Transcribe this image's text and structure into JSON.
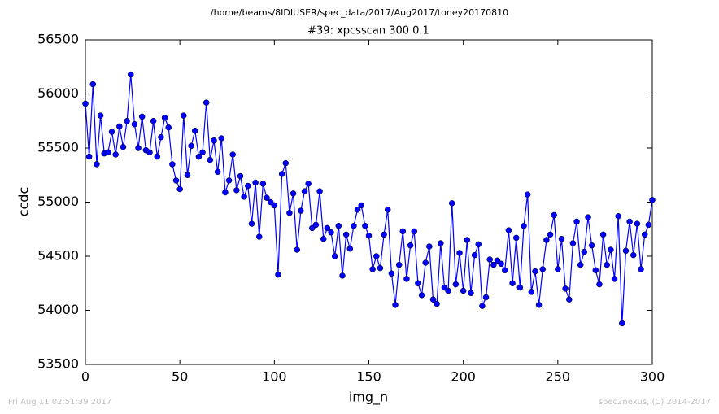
{
  "chart_data": {
    "type": "line",
    "suptitle": "/home/beams/8IDIUSER/spec_data/2017/Aug2017/toney20170810",
    "title": "#39: xpcsscan 300 0.1",
    "xlabel": "img_n",
    "ylabel": "ccdc",
    "footer_left": "Fri Aug 11 02:51:39 2017",
    "footer_right": "spec2nexus, (C) 2014-2017",
    "xlim": [
      0,
      300
    ],
    "ylim": [
      53500,
      56500
    ],
    "xticks": [
      0,
      50,
      100,
      150,
      200,
      250,
      300
    ],
    "yticks": [
      53500,
      54000,
      54500,
      55000,
      55500,
      56000,
      56500
    ],
    "grid": false,
    "x": [
      0,
      2,
      4,
      6,
      8,
      10,
      12,
      14,
      16,
      18,
      20,
      22,
      24,
      26,
      28,
      30,
      32,
      34,
      36,
      38,
      40,
      42,
      44,
      46,
      48,
      50,
      52,
      54,
      56,
      58,
      60,
      62,
      64,
      66,
      68,
      70,
      72,
      74,
      76,
      78,
      80,
      82,
      84,
      86,
      88,
      90,
      92,
      94,
      96,
      98,
      100,
      102,
      104,
      106,
      108,
      110,
      112,
      114,
      116,
      118,
      120,
      122,
      124,
      126,
      128,
      130,
      132,
      134,
      136,
      138,
      140,
      142,
      144,
      146,
      148,
      150,
      152,
      154,
      156,
      158,
      160,
      162,
      164,
      166,
      168,
      170,
      172,
      174,
      176,
      178,
      180,
      182,
      184,
      186,
      188,
      190,
      192,
      194,
      196,
      198,
      200,
      202,
      204,
      206,
      208,
      210,
      212,
      214,
      216,
      218,
      220,
      222,
      224,
      226,
      228,
      230,
      232,
      234,
      236,
      238,
      240,
      242,
      244,
      246,
      248,
      250,
      252,
      254,
      256,
      258,
      260,
      262,
      264,
      266,
      268,
      270,
      272,
      274,
      276,
      278,
      280,
      282,
      284,
      286,
      288,
      290,
      292,
      294,
      296,
      298,
      300
    ],
    "series": [
      {
        "name": "ccdc",
        "color": "#0000ff",
        "values": [
          55910,
          55420,
          56090,
          55350,
          55800,
          55450,
          55460,
          55650,
          55440,
          55700,
          55510,
          55750,
          56180,
          55720,
          55500,
          55790,
          55480,
          55460,
          55750,
          55420,
          55600,
          55780,
          55690,
          55350,
          55200,
          55120,
          55800,
          55250,
          55520,
          55660,
          55420,
          55460,
          55920,
          55390,
          55570,
          55280,
          55590,
          55090,
          55200,
          55440,
          55110,
          55240,
          55050,
          55150,
          54800,
          55180,
          54680,
          55170,
          55040,
          55000,
          54970,
          54330,
          55260,
          55360,
          54900,
          55080,
          54560,
          54920,
          55100,
          55170,
          54760,
          54790,
          55100,
          54660,
          54760,
          54720,
          54500,
          54780,
          54320,
          54700,
          54570,
          54780,
          54930,
          54970,
          54780,
          54690,
          54380,
          54500,
          54390,
          54700,
          54930,
          54340,
          54050,
          54420,
          54730,
          54290,
          54600,
          54730,
          54250,
          54140,
          54440,
          54590,
          54100,
          54060,
          54620,
          54210,
          54180,
          54990,
          54240,
          54530,
          54180,
          54650,
          54160,
          54510,
          54610,
          54040,
          54120,
          54470,
          54420,
          54460,
          54430,
          54370,
          54740,
          54250,
          54670,
          54210,
          54780,
          55070,
          54170,
          54360,
          54050,
          54380,
          54650,
          54700,
          54880,
          54380,
          54660,
          54200,
          54100,
          54620,
          54820,
          54420,
          54540,
          54860,
          54600,
          54370,
          54240,
          54700,
          54420,
          54560,
          54290,
          54870,
          53880,
          54550,
          54820,
          54510,
          54800,
          54380,
          54700,
          54790,
          55020
        ]
      }
    ]
  }
}
